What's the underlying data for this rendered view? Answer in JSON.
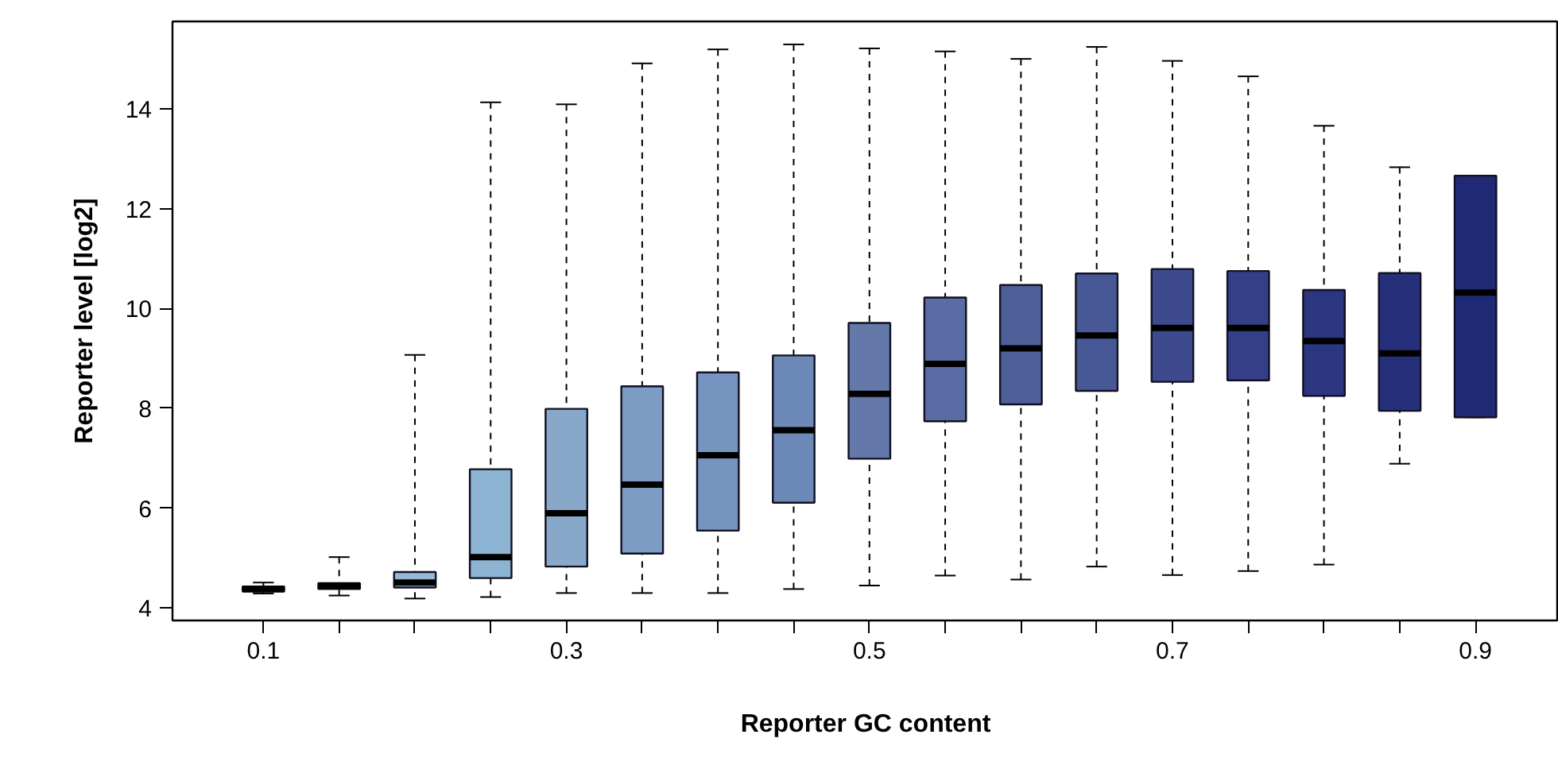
{
  "chart_data": {
    "type": "box",
    "xlabel": "Reporter GC content",
    "ylabel": "Reporter level [log2]",
    "categories": [
      "0.1",
      null,
      null,
      null,
      "0.3",
      null,
      null,
      null,
      "0.5",
      null,
      null,
      null,
      "0.7",
      null,
      null,
      null,
      "0.9"
    ],
    "ylim": [
      3.75,
      15.75
    ],
    "yticks": [
      4,
      6,
      8,
      10,
      12,
      14
    ],
    "grid": false,
    "colors": [
      "#a6c4dc",
      "#9fbfd9",
      "#97b9d6",
      "#8db3d2",
      "#87a8c9",
      "#7d9cc4",
      "#7594bf",
      "#6d89b8",
      "#6479aa",
      "#5a6ca4",
      "#4f5f9a",
      "#485896",
      "#3e4a8e",
      "#353f88",
      "#2b3580",
      "#26307a",
      "#202a74"
    ],
    "boxes": [
      {
        "low": 4.29,
        "q1": 4.33,
        "median": 4.38,
        "q3": 4.43,
        "high": 4.51
      },
      {
        "low": 4.25,
        "q1": 4.38,
        "median": 4.44,
        "q3": 4.5,
        "high": 5.02
      },
      {
        "low": 4.19,
        "q1": 4.41,
        "median": 4.51,
        "q3": 4.72,
        "high": 9.07
      },
      {
        "low": 4.22,
        "q1": 4.6,
        "median": 5.02,
        "q3": 6.78,
        "high": 14.13
      },
      {
        "low": 4.3,
        "q1": 4.83,
        "median": 5.9,
        "q3": 7.99,
        "high": 14.09
      },
      {
        "low": 4.3,
        "q1": 5.09,
        "median": 6.47,
        "q3": 8.44,
        "high": 14.91
      },
      {
        "low": 4.3,
        "q1": 5.55,
        "median": 7.06,
        "q3": 8.72,
        "high": 15.19
      },
      {
        "low": 4.38,
        "q1": 6.11,
        "median": 7.56,
        "q3": 9.06,
        "high": 15.29
      },
      {
        "low": 4.45,
        "q1": 6.99,
        "median": 8.29,
        "q3": 9.71,
        "high": 15.21
      },
      {
        "low": 4.65,
        "q1": 7.74,
        "median": 8.89,
        "q3": 10.22,
        "high": 15.15
      },
      {
        "low": 4.57,
        "q1": 8.08,
        "median": 9.2,
        "q3": 10.47,
        "high": 15.0
      },
      {
        "low": 4.83,
        "q1": 8.35,
        "median": 9.46,
        "q3": 10.7,
        "high": 15.24
      },
      {
        "low": 4.66,
        "q1": 8.53,
        "median": 9.61,
        "q3": 10.79,
        "high": 14.96
      },
      {
        "low": 4.74,
        "q1": 8.56,
        "median": 9.61,
        "q3": 10.75,
        "high": 14.65
      },
      {
        "low": 4.87,
        "q1": 8.25,
        "median": 9.35,
        "q3": 10.37,
        "high": 13.66
      },
      {
        "low": 6.89,
        "q1": 7.95,
        "median": 9.1,
        "q3": 10.71,
        "high": 12.83
      },
      {
        "low": 7.82,
        "q1": 7.82,
        "median": 10.32,
        "q3": 12.66,
        "high": 12.66
      }
    ]
  }
}
